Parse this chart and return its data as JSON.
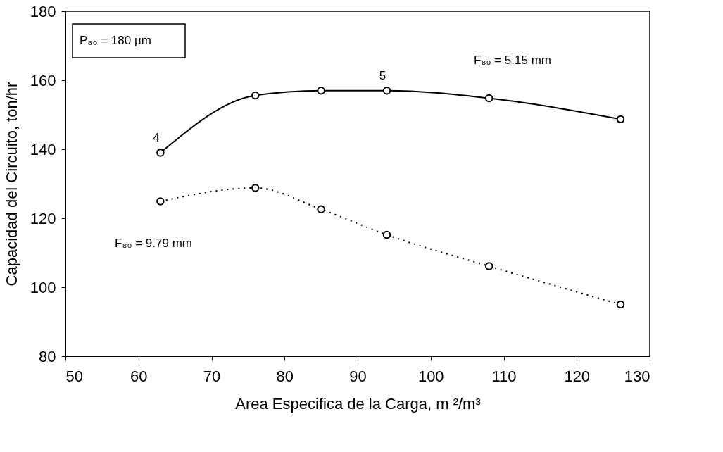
{
  "chart_data": {
    "type": "line",
    "xlabel": "Area Especifica de la Carga, m ²/m³",
    "ylabel": "Capacidad del Circuito, ton/hr",
    "xlim": [
      50,
      130
    ],
    "xticks": [
      50,
      60,
      70,
      80,
      90,
      100,
      110,
      120,
      130
    ],
    "ylim": [
      80,
      180
    ],
    "yticks": [
      80,
      100,
      120,
      140,
      160,
      180
    ],
    "grid": false,
    "marker": "circle",
    "series": [
      {
        "color": "#000000",
        "line_style": "solid",
        "x": [
          63,
          76,
          85,
          94,
          108,
          126
        ],
        "values": [
          139,
          155.6,
          157,
          157,
          154.8,
          148.7
        ]
      },
      {
        "color": "#000000",
        "line_style": "dotted",
        "x": [
          63,
          76,
          85,
          94,
          108,
          126
        ],
        "values": [
          124.9,
          128.8,
          122.6,
          115.2,
          106.1,
          95
        ]
      }
    ],
    "annotations": [
      "P₈₀ = 180 µm",
      {
        "text": "4",
        "x": 63,
        "y": 139
      },
      {
        "text": "5",
        "x": 94,
        "y": 157
      },
      "F₈₀ = 5.15 mm",
      "F₈₀ = 9.79 mm"
    ]
  }
}
